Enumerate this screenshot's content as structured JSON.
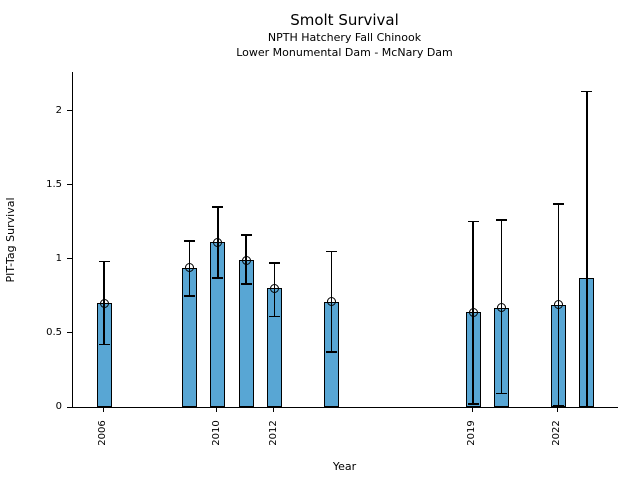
{
  "header": {
    "title": "Smolt Survival",
    "subtitle1": "NPTH Hatchery Fall Chinook",
    "subtitle2": "Lower Monumental Dam - McNary Dam"
  },
  "colors": {
    "bar_fill": "#58A6D4",
    "bar_edge": "#000000",
    "axis": "#000000",
    "background": "#FFFFFF"
  },
  "chart_data": {
    "type": "bar",
    "title": "Smolt Survival",
    "subtitles": [
      "NPTH Hatchery Fall Chinook",
      "Lower Monumental Dam - McNary Dam"
    ],
    "xlabel": "Year",
    "ylabel": "PIT-Tag Survival",
    "xlim": [
      2004.9,
      2024.1
    ],
    "ylim": [
      0,
      2.26
    ],
    "grid": false,
    "legend": null,
    "x_ticks": [
      {
        "value": 2006,
        "label": "2006"
      },
      {
        "value": 2010,
        "label": "2010"
      },
      {
        "value": 2012,
        "label": "2012"
      },
      {
        "value": 2019,
        "label": "2019"
      },
      {
        "value": 2022,
        "label": "2022"
      }
    ],
    "y_ticks": [
      {
        "value": 0,
        "label": "0"
      },
      {
        "value": 0.5,
        "label": "0.5"
      },
      {
        "value": 1,
        "label": "1"
      },
      {
        "value": 1.5,
        "label": "1.5"
      },
      {
        "value": 2,
        "label": "2"
      }
    ],
    "series": [
      {
        "year": 2006,
        "value": 0.7,
        "err_low": 0.42,
        "err_high": 0.98,
        "marker": true
      },
      {
        "year": 2009,
        "value": 0.94,
        "err_low": 0.75,
        "err_high": 1.12,
        "marker": true
      },
      {
        "year": 2010,
        "value": 1.11,
        "err_low": 0.87,
        "err_high": 1.35,
        "marker": true
      },
      {
        "year": 2011,
        "value": 0.99,
        "err_low": 0.83,
        "err_high": 1.16,
        "marker": true
      },
      {
        "year": 2012,
        "value": 0.8,
        "err_low": 0.61,
        "err_high": 0.97,
        "marker": true
      },
      {
        "year": 2014,
        "value": 0.71,
        "err_low": 0.37,
        "err_high": 1.05,
        "marker": true
      },
      {
        "year": 2019,
        "value": 0.64,
        "err_low": 0.02,
        "err_high": 1.25,
        "marker": true
      },
      {
        "year": 2020,
        "value": 0.67,
        "err_low": 0.09,
        "err_high": 1.26,
        "marker": true
      },
      {
        "year": 2022,
        "value": 0.69,
        "err_low": 0.01,
        "err_high": 1.37,
        "marker": true
      },
      {
        "year": 2023,
        "value": 0.87,
        "err_low": 0.0,
        "err_high": 2.13,
        "marker": false
      }
    ]
  }
}
